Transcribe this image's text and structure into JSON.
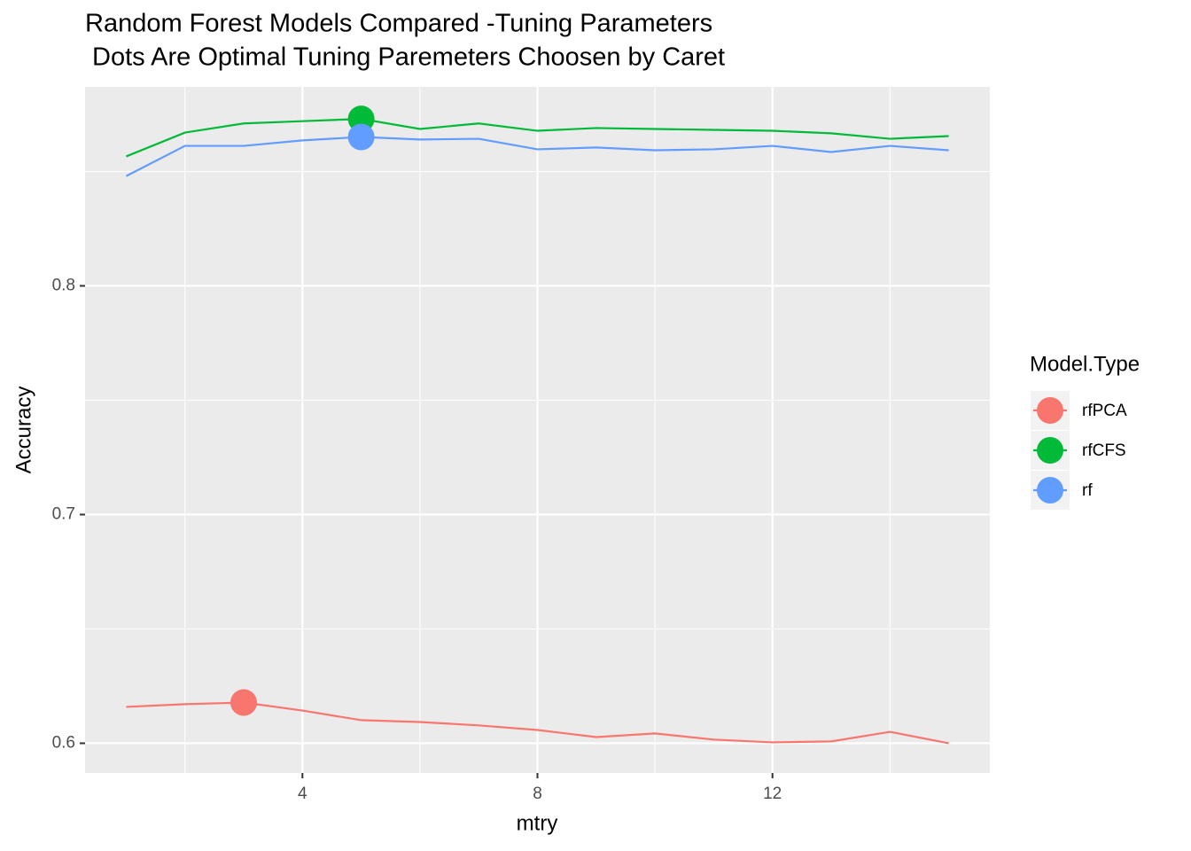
{
  "chart_data": {
    "type": "line",
    "title": [
      "Random Forest Models Compared -Tuning Parameters",
      " Dots Are Optimal Tuning Paremeters Choosen by Caret"
    ],
    "x_label": "mtry",
    "y_label": "Accuracy",
    "x": [
      1,
      2,
      3,
      4,
      5,
      6,
      7,
      8,
      9,
      10,
      11,
      12,
      13,
      14,
      15
    ],
    "series": [
      {
        "name": "rfPCA",
        "color": "#F8766D",
        "optimal_x": 3,
        "values": [
          0.6159,
          0.6171,
          0.6178,
          0.6143,
          0.6101,
          0.6093,
          0.6078,
          0.6058,
          0.6027,
          0.6043,
          0.6016,
          0.6004,
          0.6008,
          0.605,
          0.6
        ]
      },
      {
        "name": "rfCFS",
        "color": "#00BA38",
        "optimal_x": 5,
        "values": [
          0.8566,
          0.867,
          0.871,
          0.872,
          0.873,
          0.8686,
          0.871,
          0.8678,
          0.869,
          0.8686,
          0.8682,
          0.8678,
          0.8667,
          0.8643,
          0.8655
        ]
      },
      {
        "name": "rf",
        "color": "#619CFF",
        "optimal_x": 5,
        "values": [
          0.848,
          0.8612,
          0.8612,
          0.8636,
          0.8651,
          0.864,
          0.8643,
          0.8597,
          0.8605,
          0.8593,
          0.8597,
          0.8612,
          0.8585,
          0.8612,
          0.8593
        ]
      }
    ],
    "legend_title": "Model.Type",
    "legend_position": "right",
    "xlim": [
      0.3,
      15.7
    ],
    "xticks": [
      4,
      8,
      12
    ],
    "xminor": [
      2,
      6,
      10,
      14
    ],
    "ylim": [
      0.587,
      0.887
    ],
    "yticks": [
      0.6,
      0.7,
      0.8
    ],
    "yminor": [
      0.65,
      0.75,
      0.85
    ],
    "grid": true
  }
}
